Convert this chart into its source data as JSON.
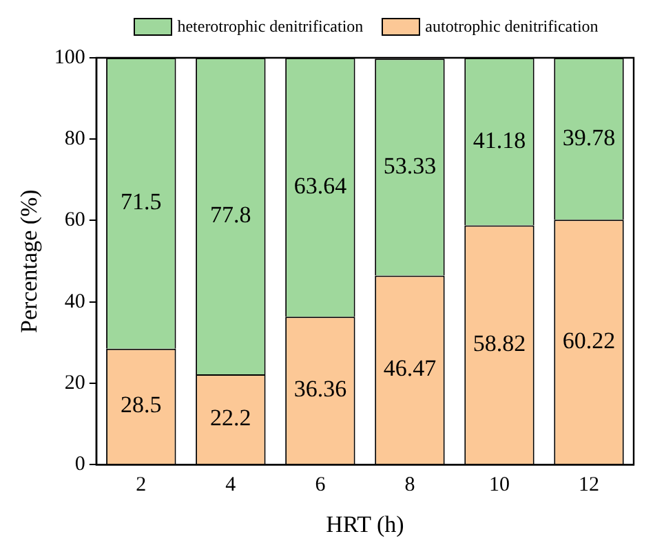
{
  "chart_data": {
    "type": "bar",
    "stacked": true,
    "xlabel": "HRT (h)",
    "ylabel": "Percentage (%)",
    "categories": [
      "2",
      "4",
      "6",
      "8",
      "10",
      "12"
    ],
    "series": [
      {
        "name": "autotrophic denitrification",
        "color": "#fcc896",
        "values": [
          28.5,
          22.2,
          36.36,
          46.47,
          58.82,
          60.22
        ]
      },
      {
        "name": "heterotrophic denitrification",
        "color": "#9fd89c",
        "values": [
          71.5,
          77.8,
          63.64,
          53.33,
          41.18,
          39.78
        ]
      }
    ],
    "ylim": [
      0,
      100
    ],
    "yticks": [
      0,
      20,
      40,
      60,
      80,
      100
    ],
    "grid": false,
    "legend": "top",
    "data_labels": true
  }
}
